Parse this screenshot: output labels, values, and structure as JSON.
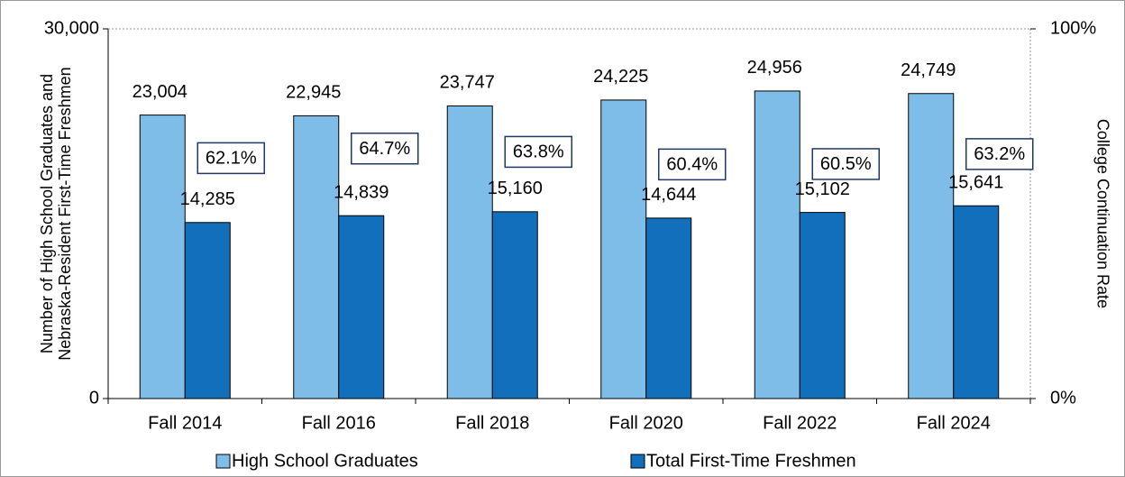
{
  "chart_data": {
    "type": "bar",
    "ylabel": "Number of High School Graduates and Nebraska-Resident First-Time Freshmen",
    "y2label": "College Continuation Rate",
    "categories": [
      "Fall 2014",
      "Fall 2016",
      "Fall 2018",
      "Fall 2020",
      "Fall 2022",
      "Fall 2024"
    ],
    "series": [
      {
        "name": "High School Graduates",
        "color": "#7fbde9",
        "values": [
          23004,
          22945,
          23747,
          24225,
          24956,
          24749
        ],
        "value_labels": [
          "23,004",
          "22,945",
          "23,747",
          "24,225",
          "24,956",
          "24,749"
        ]
      },
      {
        "name": "Total First-Time Freshmen",
        "color": "#126fbb",
        "values": [
          14285,
          14839,
          15160,
          14644,
          15102,
          15641
        ],
        "value_labels": [
          "14,285",
          "14,839",
          "15,160",
          "14,644",
          "15,102",
          "15,641"
        ]
      },
      {
        "axis": "y2",
        "color": "#1f3864",
        "values": [
          62.1,
          64.7,
          63.8,
          60.4,
          60.5,
          63.2
        ],
        "value_labels": [
          "62.1%",
          "64.7%",
          "63.8%",
          "60.4%",
          "60.5%",
          "63.2%"
        ]
      }
    ],
    "ylim": [
      0,
      30000
    ],
    "yticks": [
      0,
      {
        "value": 30000,
        "label": "30,000"
      }
    ],
    "y2lim": [
      0,
      100
    ],
    "y2ticks": [
      {
        "value": 0,
        "label": "0%"
      },
      {
        "value": 100,
        "label": "100%"
      }
    ],
    "legend": "bottom",
    "grid": false
  }
}
